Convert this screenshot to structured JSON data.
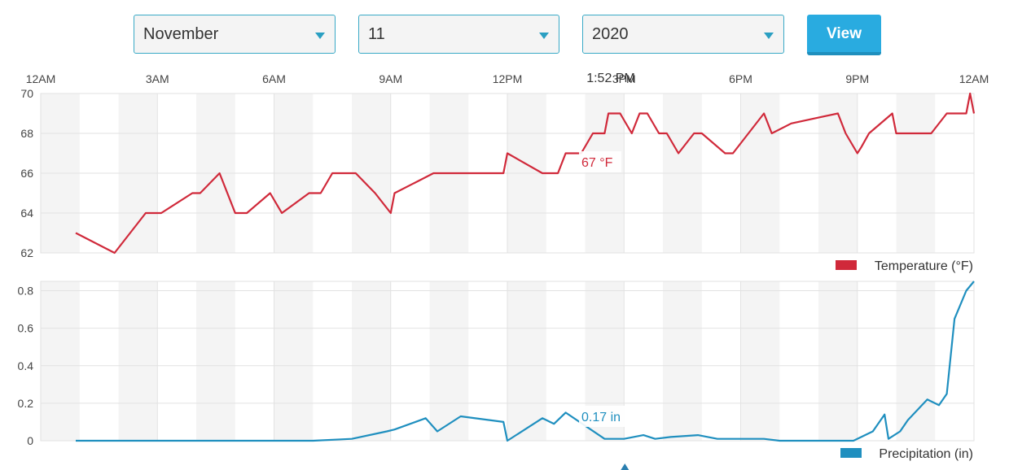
{
  "controls": {
    "month": "November",
    "day": "11",
    "year": "2020",
    "view_label": "View"
  },
  "cursor": {
    "time_label": "1:52 PM",
    "temperature_label": "67 °F",
    "precipitation_label": "0.17 in"
  },
  "colors": {
    "temperature": "#d0293a",
    "precipitation": "#1f8fbf",
    "button": "#29abe0",
    "control_border": "#39a9c6"
  },
  "chart_data": [
    {
      "type": "line",
      "x_unit": "hours since 12AM",
      "x_ticks": [
        "12AM",
        "3AM",
        "6AM",
        "9AM",
        "12PM",
        "3PM",
        "6PM",
        "9PM",
        "12AM"
      ],
      "xlim": [
        0,
        24
      ],
      "ylim": [
        62,
        70
      ],
      "y_ticks": [
        "62",
        "64",
        "66",
        "68",
        "70"
      ],
      "grid": true,
      "legend": "bottom-right",
      "series": [
        {
          "name": "Temperature (°F)",
          "x": [
            0.9,
            1.9,
            2.7,
            3.1,
            3.9,
            4.1,
            4.6,
            5.0,
            5.3,
            5.9,
            6.2,
            6.9,
            7.2,
            7.5,
            8.1,
            8.6,
            9.0,
            9.1,
            10.1,
            11.0,
            11.9,
            12.0,
            12.9,
            13.3,
            13.5,
            13.9,
            14.2,
            14.5,
            14.6,
            14.9,
            15.2,
            15.4,
            15.6,
            15.9,
            16.1,
            16.4,
            16.8,
            17.0,
            17.6,
            17.8,
            18.6,
            18.8,
            19.3,
            20.5,
            20.7,
            21.0,
            21.1,
            21.3,
            21.9,
            22.0,
            22.9,
            23.3,
            23.8,
            23.9,
            24.0
          ],
          "y": [
            63,
            62,
            64,
            64,
            65,
            65,
            66,
            64,
            64,
            65,
            64,
            65,
            65,
            66,
            66,
            65,
            64,
            65,
            66,
            66,
            66,
            67,
            66,
            66,
            67,
            67,
            68,
            68,
            69,
            69,
            68,
            69,
            69,
            68,
            68,
            67,
            68,
            68,
            67,
            67,
            69,
            68,
            68.5,
            69,
            68,
            67,
            67.3,
            68,
            69,
            68,
            68,
            69,
            69,
            70,
            69
          ]
        }
      ]
    },
    {
      "type": "line",
      "x_unit": "hours since 12AM",
      "xlim": [
        0,
        24
      ],
      "ylim": [
        0,
        0.85
      ],
      "y_ticks": [
        "0",
        "0.2",
        "0.4",
        "0.6",
        "0.8"
      ],
      "grid": true,
      "legend": "bottom-right",
      "series": [
        {
          "name": "Precipitation (in)",
          "x": [
            0.9,
            7.0,
            8.0,
            8.9,
            9.1,
            9.9,
            10.2,
            10.8,
            11.9,
            12.0,
            12.9,
            13.2,
            13.5,
            14.5,
            14.7,
            15.0,
            15.5,
            15.8,
            16.2,
            16.9,
            17.4,
            18.0,
            18.6,
            19.0,
            20.9,
            21.4,
            21.7,
            21.8,
            22.1,
            22.3,
            22.8,
            22.9,
            23.1,
            23.3,
            23.5,
            23.8,
            24.0
          ],
          "y": [
            0,
            0,
            0.01,
            0.05,
            0.06,
            0.12,
            0.05,
            0.13,
            0.1,
            0,
            0.12,
            0.09,
            0.15,
            0.01,
            0.01,
            0.01,
            0.03,
            0.01,
            0.02,
            0.03,
            0.01,
            0.01,
            0.01,
            0,
            0,
            0.05,
            0.14,
            0.01,
            0.05,
            0.11,
            0.22,
            0.21,
            0.19,
            0.25,
            0.65,
            0.8,
            0.85
          ]
        }
      ]
    }
  ]
}
